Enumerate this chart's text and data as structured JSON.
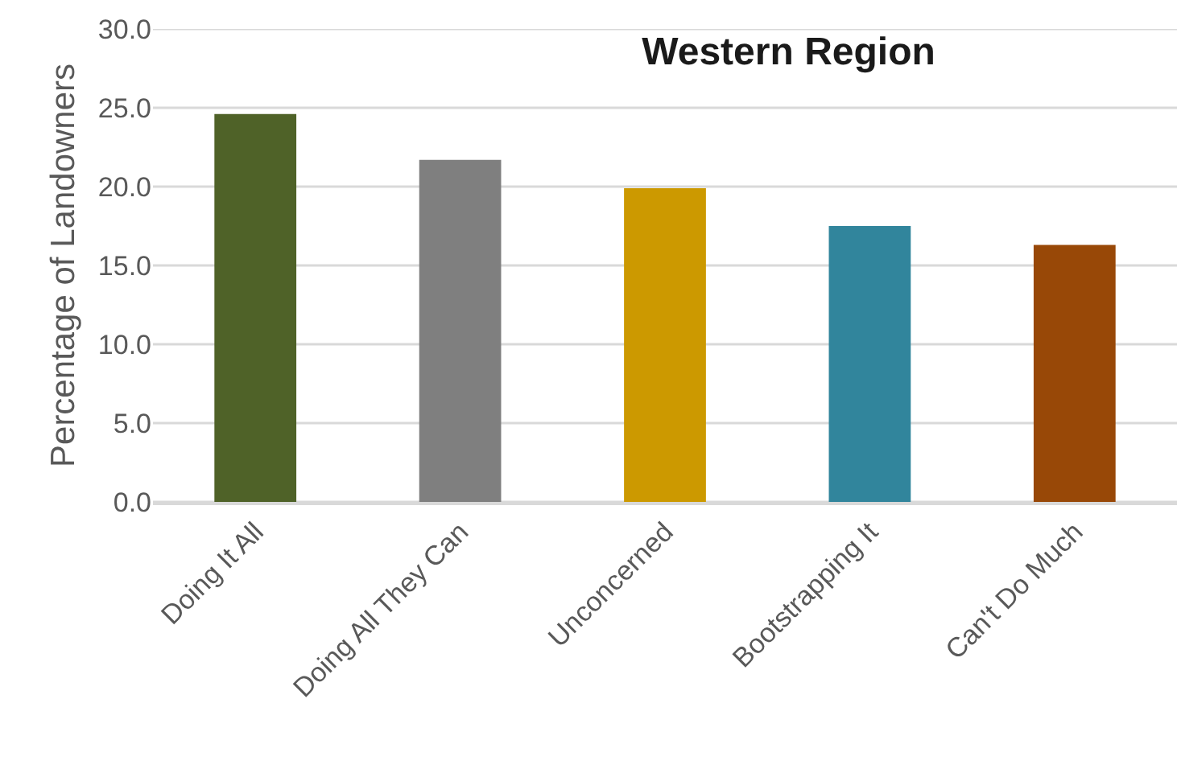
{
  "chart_data": {
    "type": "bar",
    "title": "Western Region",
    "ylabel": "Percentage of Landowners",
    "categories": [
      "Doing It All",
      "Doing All They Can",
      "Unconcerned",
      "Bootstrapping It",
      "Can't Do Much"
    ],
    "values": [
      24.6,
      21.7,
      19.9,
      17.5,
      16.3
    ],
    "colors": [
      "#4f6228",
      "#7f7f7f",
      "#cc9900",
      "#31859c",
      "#984807"
    ],
    "ylim": [
      0,
      30
    ],
    "yticks": [
      {
        "value": 0,
        "label": "0.0"
      },
      {
        "value": 5,
        "label": "5.0"
      },
      {
        "value": 10,
        "label": "10.0"
      },
      {
        "value": 15,
        "label": "15.0"
      },
      {
        "value": 20,
        "label": "20.0"
      },
      {
        "value": 25,
        "label": "25.0"
      },
      {
        "value": 30,
        "label": "30.0"
      }
    ],
    "grid": "y"
  }
}
